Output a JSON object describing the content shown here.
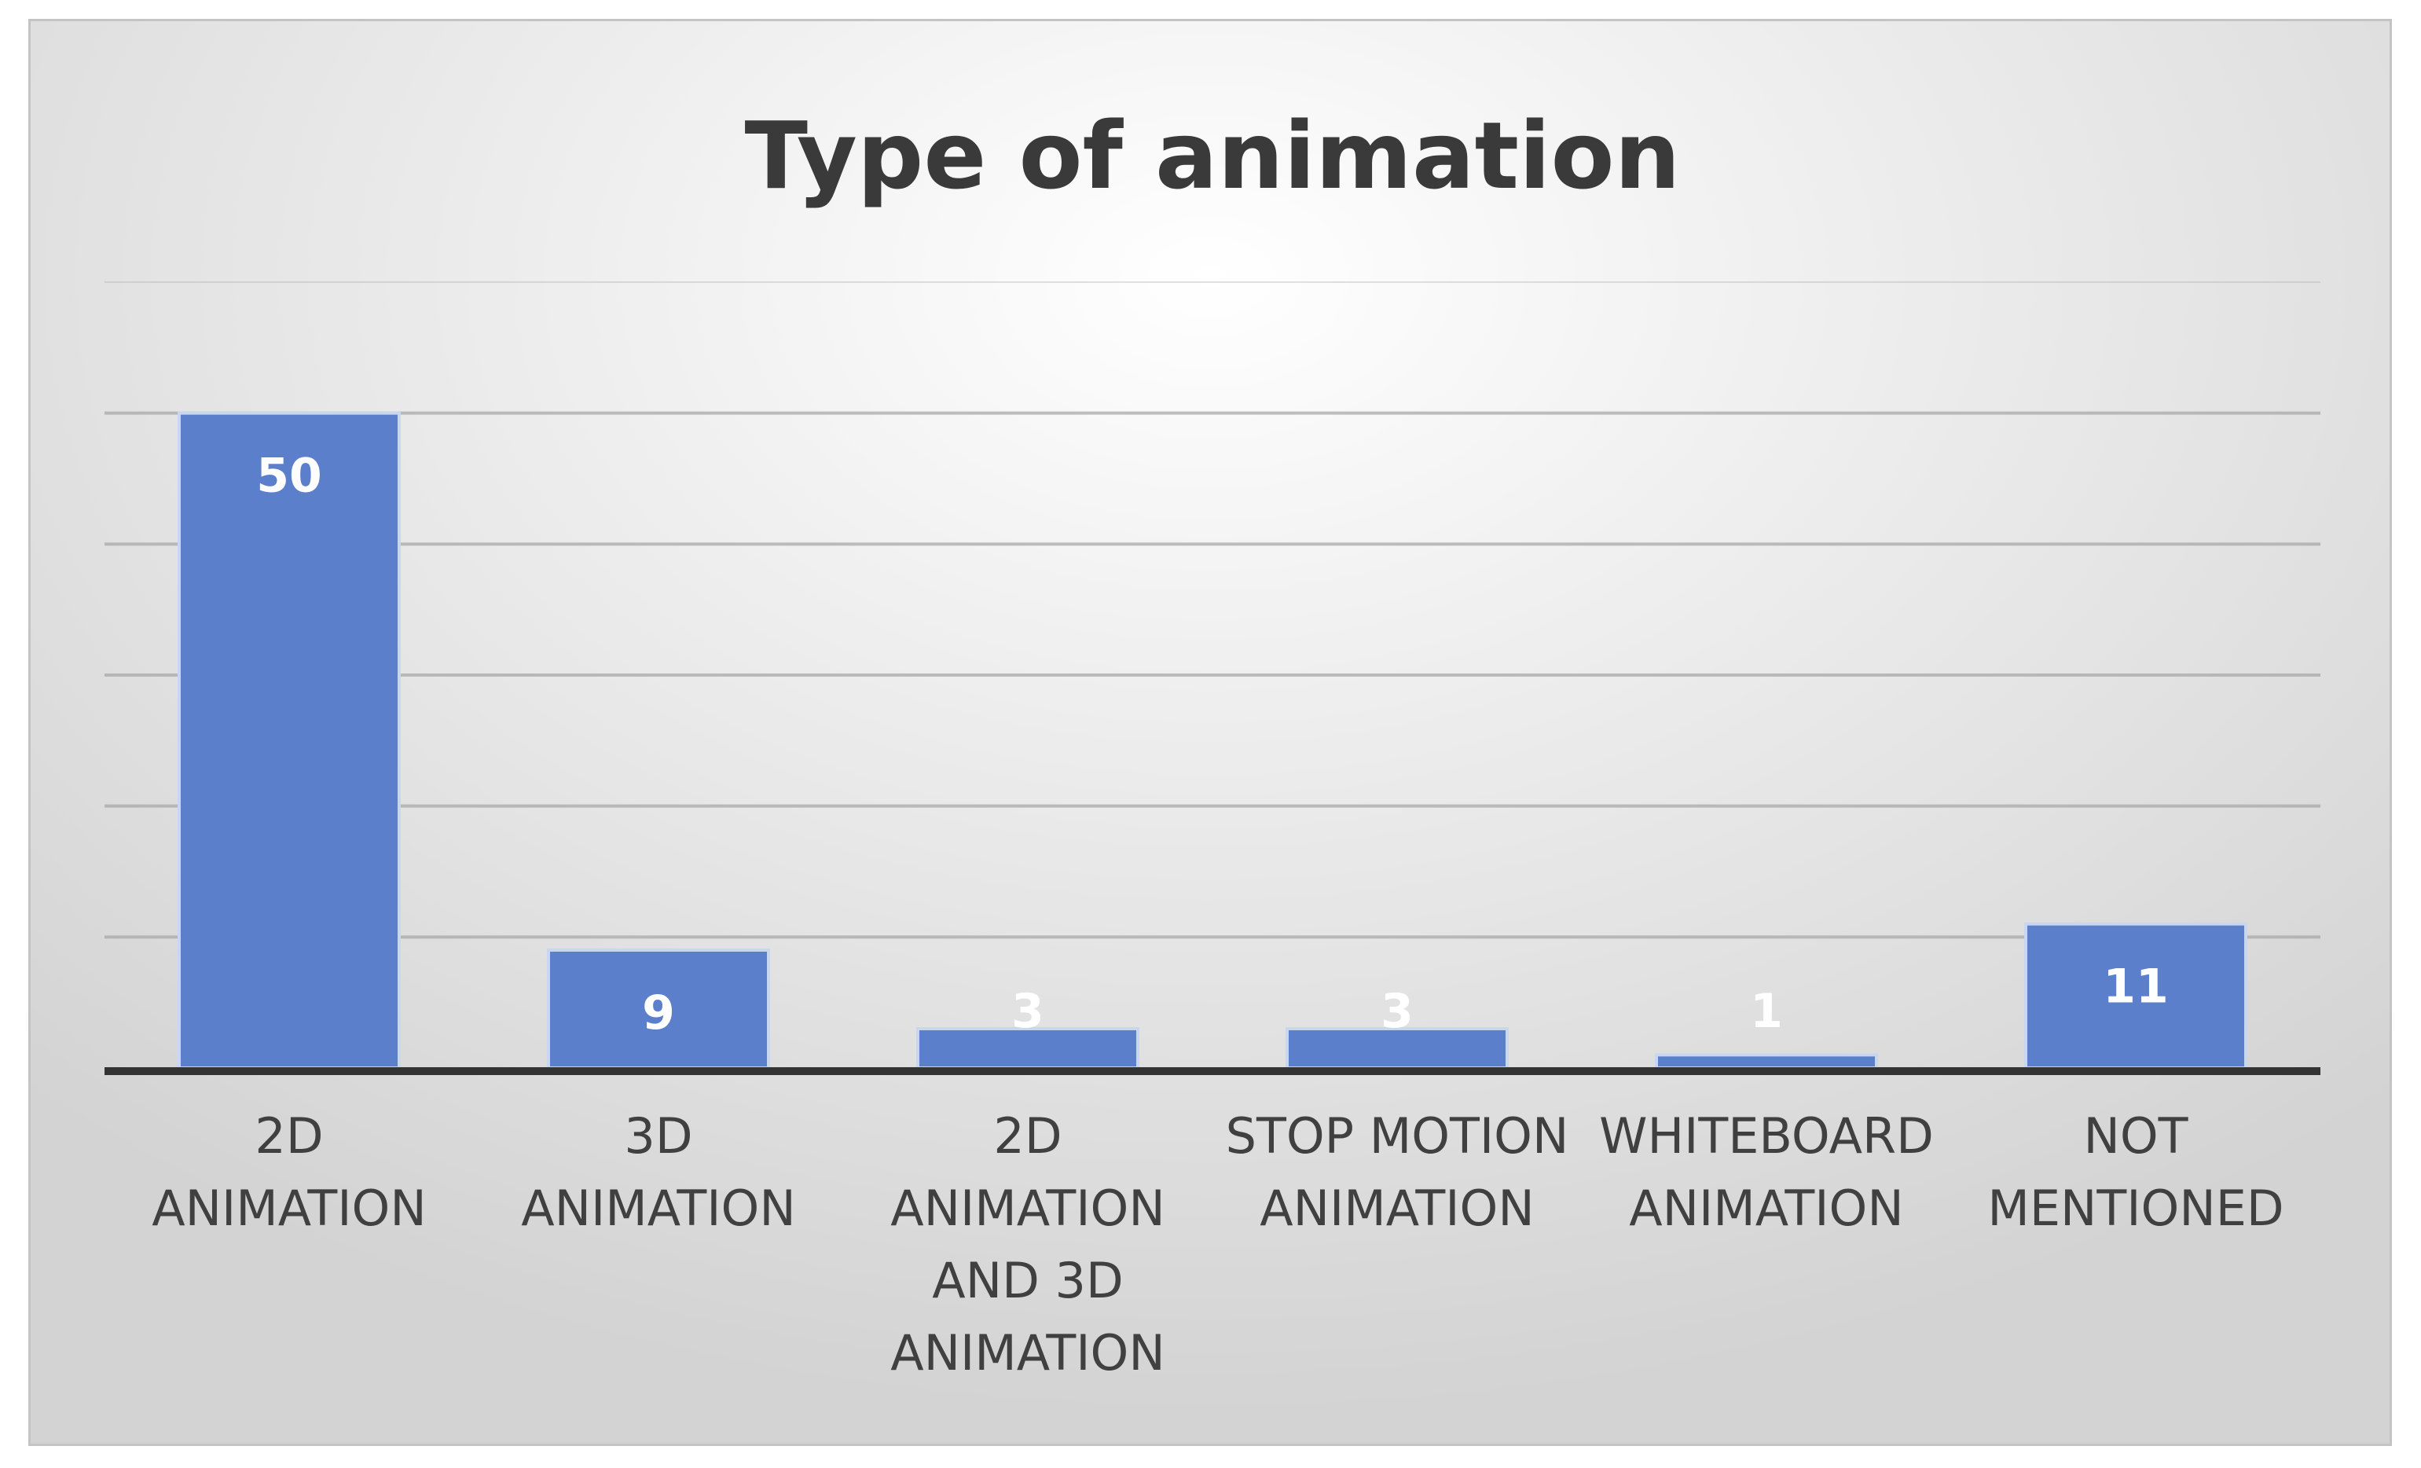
{
  "chart_data": {
    "type": "bar",
    "title": "Type of animation",
    "xlabel": "",
    "ylabel": "",
    "categories": [
      [
        "2D",
        "ANIMATION"
      ],
      [
        "3D",
        "ANIMATION"
      ],
      [
        "2D",
        "ANIMATION",
        "AND 3D",
        "ANIMATION"
      ],
      [
        "STOP MOTION",
        "ANIMATION"
      ],
      [
        "WHITEBOARD",
        "ANIMATION"
      ],
      [
        "NOT",
        "MENTIONED"
      ]
    ],
    "values": [
      50,
      9,
      3,
      3,
      1,
      11
    ],
    "data_labels": [
      "50",
      "9",
      "3",
      "3",
      "1",
      "11"
    ],
    "ylim": [
      0,
      60
    ],
    "gridlines": true,
    "legend": "none",
    "colors": {
      "bar": "#5b7fcb",
      "bar_edge": "#c9d6f0",
      "gridline": "#a8a8a8",
      "axis": "#333333",
      "label": "#ffffff"
    }
  }
}
